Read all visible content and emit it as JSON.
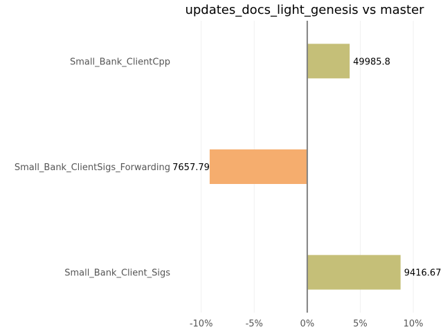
{
  "chart_data": {
    "type": "bar",
    "orientation": "horizontal",
    "title": "updates_docs_light_genesis vs master",
    "xlabel": "",
    "ylabel": "",
    "categories": [
      "Small_Bank_ClientCpp",
      "Small_Bank_ClientSigs_Forwarding",
      "Small_Bank_Client_Sigs"
    ],
    "values": [
      4.0,
      -9.2,
      8.8
    ],
    "value_unit": "%",
    "data_labels": [
      "49985.8",
      "7657.79",
      "9416.67"
    ],
    "xlim": [
      -12,
      12.8
    ],
    "xticks": [
      -10,
      -5,
      0,
      5,
      10
    ],
    "xtick_labels": [
      "-10%",
      "-5%",
      "0%",
      "5%",
      "10%"
    ],
    "grid": "vertical",
    "legend": "none",
    "colors": {
      "positive": "#c5bf78",
      "negative": "#f5ad6e",
      "zero_line": "#808080",
      "grid": "#f0f0f0"
    }
  }
}
